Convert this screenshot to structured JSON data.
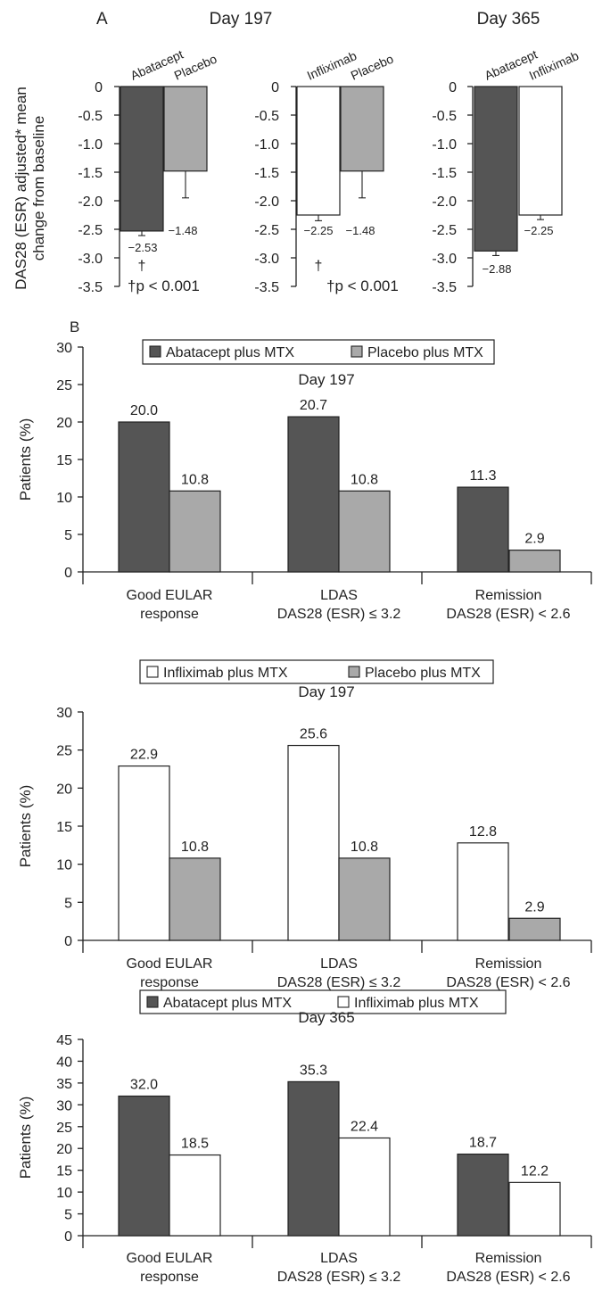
{
  "panel_a": {
    "label": "A",
    "ylabel_line1": "DAS28 (ESR) adjusted* mean",
    "ylabel_line2": "change from baseline",
    "headers": [
      "Day 197",
      "Day 365"
    ]
  },
  "panel_b": {
    "label": "B"
  },
  "colors": {
    "abatacept": "#555555",
    "placebo": "#a9a9a9",
    "infliximab": "#ffffff",
    "axis": "#222222"
  },
  "chart_data": [
    {
      "type": "bar",
      "panel": "A",
      "title": "Day 197",
      "categories": [
        "Abatacept",
        "Placebo"
      ],
      "values": [
        -2.53,
        -1.48
      ],
      "value_labels": [
        "−2.53",
        "−1.48"
      ],
      "bar_colors": [
        "abatacept",
        "placebo"
      ],
      "ylabel": "DAS28 (ESR) adjusted* mean change from baseline",
      "ylim": [
        -3.5,
        0
      ],
      "yticks": [
        "0",
        "-0.5",
        "-1.0",
        "-1.5",
        "-2.0",
        "-2.5",
        "-3.0",
        "-3.5"
      ],
      "annotations": [
        "†",
        "†p < 0.001"
      ]
    },
    {
      "type": "bar",
      "panel": "A",
      "categories": [
        "Infliximab",
        "Placebo"
      ],
      "values": [
        -2.25,
        -1.48
      ],
      "value_labels": [
        "−2.25",
        "−1.48"
      ],
      "bar_colors": [
        "infliximab",
        "placebo"
      ],
      "ylim": [
        -3.5,
        0
      ],
      "yticks": [
        "0",
        "-0.5",
        "-1.0",
        "-1.5",
        "-2.0",
        "-2.5",
        "-3.0",
        "-3.5"
      ],
      "annotations": [
        "†",
        "†p < 0.001"
      ]
    },
    {
      "type": "bar",
      "panel": "A",
      "title": "Day 365",
      "categories": [
        "Abatacept",
        "Infliximab"
      ],
      "values": [
        -2.88,
        -2.25
      ],
      "value_labels": [
        "−2.88",
        "−2.25"
      ],
      "bar_colors": [
        "abatacept",
        "infliximab"
      ],
      "ylim": [
        -3.5,
        0
      ],
      "yticks": [
        "0",
        "-0.5",
        "-1.0",
        "-1.5",
        "-2.0",
        "-2.5",
        "-3.0",
        "-3.5"
      ]
    },
    {
      "type": "bar",
      "panel": "B",
      "title": "Day 197",
      "categories": [
        [
          "Good EULAR",
          "response"
        ],
        [
          "LDAS",
          "DAS28 (ESR) ≤ 3.2"
        ],
        [
          "Remission",
          "DAS28 (ESR) < 2.6"
        ]
      ],
      "series": [
        {
          "name": "Abatacept plus MTX",
          "color": "abatacept",
          "values": [
            20.0,
            20.7,
            11.3
          ],
          "labels": [
            "20.0",
            "20.7",
            "11.3"
          ]
        },
        {
          "name": "Placebo plus MTX",
          "color": "placebo",
          "values": [
            10.8,
            10.8,
            2.9
          ],
          "labels": [
            "10.8",
            "10.8",
            "2.9"
          ]
        }
      ],
      "ylabel": "Patients (%)",
      "ylim": [
        0,
        30
      ],
      "yticks": [
        "0",
        "5",
        "10",
        "15",
        "20",
        "25",
        "30"
      ],
      "legend": "top"
    },
    {
      "type": "bar",
      "panel": "B",
      "title": "Day 197",
      "categories": [
        [
          "Good EULAR",
          "response"
        ],
        [
          "LDAS",
          "DAS28 (ESR) ≤ 3.2"
        ],
        [
          "Remission",
          "DAS28 (ESR) < 2.6"
        ]
      ],
      "series": [
        {
          "name": "Infliximab plus MTX",
          "color": "infliximab",
          "values": [
            22.9,
            25.6,
            12.8
          ],
          "labels": [
            "22.9",
            "25.6",
            "12.8"
          ]
        },
        {
          "name": "Placebo plus MTX",
          "color": "placebo",
          "values": [
            10.8,
            10.8,
            2.9
          ],
          "labels": [
            "10.8",
            "10.8",
            "2.9"
          ]
        }
      ],
      "ylabel": "Patients (%)",
      "ylim": [
        0,
        30
      ],
      "yticks": [
        "0",
        "5",
        "10",
        "15",
        "20",
        "25",
        "30"
      ],
      "legend": "top"
    },
    {
      "type": "bar",
      "panel": "B",
      "title": "Day 365",
      "categories": [
        [
          "Good EULAR",
          "response"
        ],
        [
          "LDAS",
          "DAS28 (ESR) ≤ 3.2"
        ],
        [
          "Remission",
          "DAS28 (ESR) < 2.6"
        ]
      ],
      "series": [
        {
          "name": "Abatacept plus MTX",
          "color": "abatacept",
          "values": [
            32.0,
            35.3,
            18.7
          ],
          "labels": [
            "32.0",
            "35.3",
            "18.7"
          ]
        },
        {
          "name": "Infliximab plus MTX",
          "color": "infliximab",
          "values": [
            18.5,
            22.4,
            12.2
          ],
          "labels": [
            "18.5",
            "22.4",
            "12.2"
          ]
        }
      ],
      "ylabel": "Patients (%)",
      "ylim": [
        0,
        45
      ],
      "yticks": [
        "0",
        "5",
        "10",
        "15",
        "20",
        "25",
        "30",
        "35",
        "40",
        "45"
      ],
      "legend": "top"
    }
  ]
}
